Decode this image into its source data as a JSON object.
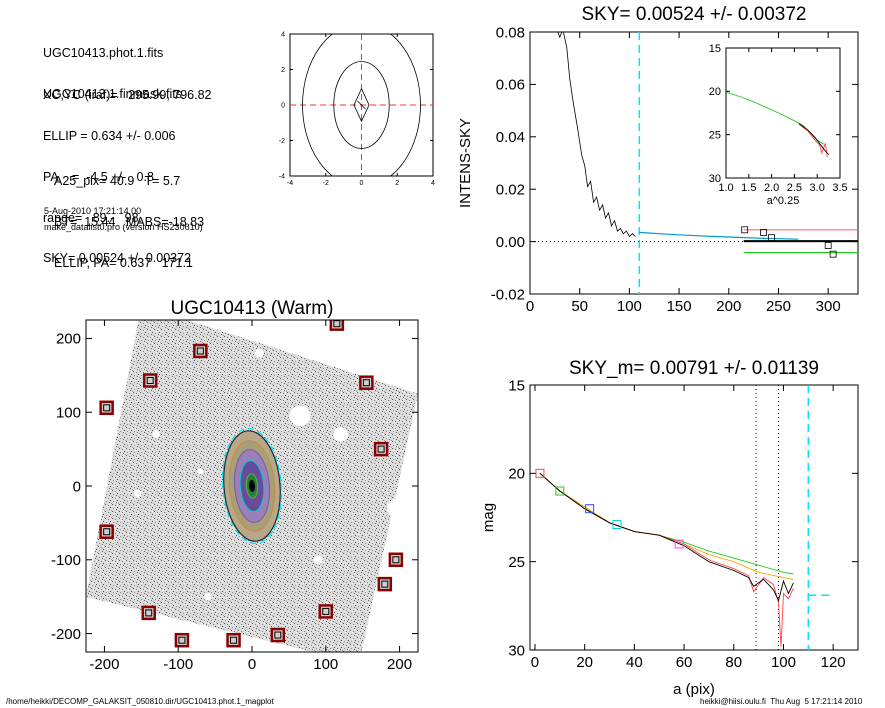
{
  "info": {
    "files": [
      "UGC10413.phot.1.fits",
      "UGC10413.1.finmask.fits"
    ],
    "params": [
      "XC,YC (iraf)=   295.99, 796.82",
      "ELLIP = 0.634 +/- 0.006",
      "PA    =  -4.5 +/-   0.8",
      "range=   89.-   98.",
      "SKY= 0.00524 +/- 0.00372"
    ],
    "derived": [
      "A25_pix= 40.9   T= 5.7",
      "BT=  15.44   MABS=-18.83",
      "ELLIP, PA= 0.637   171.1"
    ],
    "date": "5-Aug-2010 17:21:14.00",
    "program": "make_datalist0.pro (version HS230610)"
  },
  "footer": {
    "path": "/home/heikki/DECOMP_GALAKSIT_050810.dir/UGC10413.phot.1_magplot",
    "user": "heikki@hiisi.oulu.fi  Thu Aug  5 17:21:14 2010"
  },
  "colors": {
    "sky_line": "#00e5ff",
    "markers": "#8b0000",
    "ref_cross": "#ff3030"
  },
  "chart_data": [
    {
      "id": "contour",
      "type": "contour",
      "xlim": [
        -4,
        4
      ],
      "ylim": [
        -4,
        4
      ],
      "xticks": [
        "-4",
        "-2",
        "0",
        "2",
        "4"
      ],
      "yticks": [
        "-4",
        "-2",
        "0",
        "2",
        "4"
      ],
      "contours": [
        {
          "a": 0.42,
          "b": 0.92
        },
        {
          "a": 1.55,
          "b": 2.45
        },
        {
          "a": 3.3,
          "b": 4.6
        }
      ]
    },
    {
      "id": "sky",
      "type": "line",
      "title": "SKY= 0.00524 +/- 0.00372",
      "ylabel": "INTENS-SKY",
      "xlim": [
        0,
        330
      ],
      "ylim": [
        -0.02,
        0.08
      ],
      "xticks": [
        "0",
        "50",
        "100",
        "150",
        "200",
        "250",
        "300"
      ],
      "yticks": [
        "-0.02",
        "0.00",
        "0.02",
        "0.04",
        "0.06",
        "0.08"
      ],
      "sky_marker_x": 110,
      "profile": [
        [
          26,
          0.082
        ],
        [
          30,
          0.078
        ],
        [
          33,
          0.081
        ],
        [
          37,
          0.074
        ],
        [
          40,
          0.062
        ],
        [
          44,
          0.052
        ],
        [
          48,
          0.043
        ],
        [
          52,
          0.033
        ],
        [
          55,
          0.029
        ],
        [
          58,
          0.021
        ],
        [
          61,
          0.023
        ],
        [
          64,
          0.015
        ],
        [
          67,
          0.017
        ],
        [
          70,
          0.012
        ],
        [
          73,
          0.014
        ],
        [
          76,
          0.009
        ],
        [
          79,
          0.011
        ],
        [
          82,
          0.006
        ],
        [
          85,
          0.008
        ],
        [
          88,
          0.004
        ],
        [
          91,
          0.005
        ],
        [
          94,
          0.003
        ],
        [
          97,
          0.004
        ],
        [
          100,
          0.002
        ],
        [
          103,
          0.003
        ],
        [
          106,
          0.002
        ]
      ],
      "fit_profile": [
        [
          110,
          0.0035
        ],
        [
          130,
          0.003
        ],
        [
          150,
          0.0026
        ],
        [
          170,
          0.0022
        ],
        [
          190,
          0.0019
        ],
        [
          210,
          0.0016
        ],
        [
          230,
          0.0013
        ],
        [
          250,
          0.0011
        ],
        [
          270,
          0.0009
        ]
      ],
      "squares": [
        [
          216,
          0.0045
        ],
        [
          235,
          0.0035
        ],
        [
          243,
          0.0015
        ],
        [
          300,
          -0.0015
        ],
        [
          305,
          -0.0048
        ]
      ],
      "levels": [
        {
          "color": "#ff6a6a",
          "y": 0.0045,
          "x": [
            215,
            330
          ]
        },
        {
          "color": "#000000",
          "y": 0.0002,
          "x": [
            215,
            330
          ]
        },
        {
          "color": "#22cc22",
          "y": -0.0042,
          "x": [
            215,
            330
          ]
        }
      ],
      "zero_line": 0
    },
    {
      "id": "inset",
      "type": "line",
      "xlabel": "a^0.25",
      "xlim": [
        1.0,
        3.5
      ],
      "ylim": [
        30,
        15
      ],
      "xticks": [
        "1.0",
        "1.5",
        "2.0",
        "2.5",
        "3.0",
        "3.5"
      ],
      "yticks": [
        "15",
        "20",
        "25",
        "30"
      ],
      "series": [
        {
          "color": "#22cc22",
          "points": [
            [
              1.0,
              20.1
            ],
            [
              1.3,
              20.6
            ],
            [
              1.6,
              21.2
            ],
            [
              1.9,
              21.9
            ],
            [
              2.2,
              22.6
            ],
            [
              2.5,
              23.4
            ],
            [
              2.7,
              24.0
            ],
            [
              2.85,
              24.8
            ],
            [
              2.95,
              25.4
            ],
            [
              3.05,
              25.8
            ],
            [
              3.15,
              26.1
            ]
          ]
        },
        {
          "color": "#ff4444",
          "points": [
            [
              2.6,
              23.8
            ],
            [
              2.8,
              24.6
            ],
            [
              2.95,
              25.6
            ],
            [
              3.05,
              26.2
            ],
            [
              3.1,
              27.1
            ],
            [
              3.18,
              26.0
            ],
            [
              3.22,
              27.6
            ]
          ]
        },
        {
          "color": "#000000",
          "points": [
            [
              2.6,
              23.7
            ],
            [
              2.8,
              24.5
            ],
            [
              2.95,
              25.3
            ],
            [
              3.05,
              26.0
            ],
            [
              3.12,
              26.5
            ],
            [
              3.2,
              27.0
            ],
            [
              3.25,
              27.3
            ]
          ]
        }
      ]
    },
    {
      "id": "image",
      "type": "image",
      "title": "UGC10413 (Warm)",
      "xlim": [
        -225,
        225
      ],
      "ylim": [
        -225,
        225
      ],
      "xticks": [
        "-200",
        "-100",
        "0",
        "100",
        "200"
      ],
      "yticks": [
        "-200",
        "-100",
        "0",
        "100",
        "200"
      ],
      "frame_corners": [
        [
          -150,
          245
        ],
        [
          225,
          125
        ],
        [
          145,
          -240
        ],
        [
          -225,
          -150
        ]
      ],
      "galaxy": {
        "rx": 38,
        "ry": 75,
        "rot": -4.5
      },
      "mask_boxes": [
        [
          -70,
          183
        ],
        [
          -138,
          143
        ],
        [
          -197,
          106
        ],
        [
          155,
          140
        ],
        [
          175,
          50
        ],
        [
          -197,
          -62
        ],
        [
          195,
          -100
        ],
        [
          180,
          -133
        ],
        [
          100,
          -170
        ],
        [
          -140,
          -172
        ],
        [
          -95,
          -209
        ],
        [
          -25,
          -209
        ],
        [
          35,
          -202
        ],
        [
          115,
          220
        ]
      ],
      "holes": [
        [
          65,
          95,
          14
        ],
        [
          120,
          70,
          10
        ],
        [
          195,
          -30,
          12
        ],
        [
          -130,
          70,
          5
        ],
        [
          -155,
          -10,
          5
        ],
        [
          -70,
          20,
          4
        ],
        [
          90,
          -100,
          6
        ],
        [
          -60,
          -150,
          5
        ],
        [
          10,
          180,
          6
        ]
      ]
    },
    {
      "id": "mag",
      "type": "line",
      "title": "SKY_m=  0.00791 +/- 0.01139",
      "xlabel": "a (pix)",
      "ylabel": "mag",
      "xlim": [
        -2,
        130
      ],
      "ylim": [
        30,
        15
      ],
      "xticks": [
        "0",
        "20",
        "40",
        "60",
        "80",
        "100",
        "120"
      ],
      "yticks": [
        "15",
        "20",
        "25",
        "30"
      ],
      "vlines_dotted": [
        89,
        98
      ],
      "sky_marker_x": 110,
      "sky_level_y": 26.9,
      "series": [
        {
          "color": "#22cc22",
          "points": [
            [
              2,
              20.0
            ],
            [
              10,
              21.0
            ],
            [
              20,
              21.9
            ],
            [
              30,
              22.8
            ],
            [
              40,
              23.3
            ],
            [
              50,
              23.5
            ],
            [
              60,
              23.9
            ],
            [
              70,
              24.4
            ],
            [
              80,
              24.8
            ],
            [
              90,
              25.2
            ],
            [
              100,
              25.6
            ],
            [
              104,
              25.7
            ]
          ]
        },
        {
          "color": "#ffa500",
          "points": [
            [
              2,
              20.0
            ],
            [
              10,
              21.0
            ],
            [
              20,
              21.9
            ],
            [
              30,
              22.8
            ],
            [
              40,
              23.3
            ],
            [
              50,
              23.5
            ],
            [
              60,
              24.0
            ],
            [
              70,
              24.6
            ],
            [
              80,
              25.0
            ],
            [
              90,
              25.6
            ],
            [
              100,
              25.9
            ],
            [
              104,
              26.0
            ]
          ]
        },
        {
          "color": "#ff4444",
          "points": [
            [
              2,
              20.0
            ],
            [
              10,
              21.0
            ],
            [
              20,
              22.0
            ],
            [
              30,
              22.8
            ],
            [
              40,
              23.3
            ],
            [
              50,
              23.5
            ],
            [
              60,
              24.0
            ],
            [
              70,
              24.9
            ],
            [
              80,
              25.4
            ],
            [
              86,
              25.8
            ],
            [
              88,
              26.7
            ],
            [
              92,
              25.9
            ],
            [
              96,
              26.3
            ],
            [
              98,
              27.3
            ],
            [
              99,
              29.8
            ],
            [
              100,
              26.8
            ],
            [
              102,
              27.1
            ],
            [
              104,
              26.5
            ]
          ]
        },
        {
          "color": "#000000",
          "points": [
            [
              2,
              20.0
            ],
            [
              10,
              21.0
            ],
            [
              20,
              22.0
            ],
            [
              30,
              22.8
            ],
            [
              40,
              23.3
            ],
            [
              50,
              23.5
            ],
            [
              60,
              24.1
            ],
            [
              70,
              25.0
            ],
            [
              80,
              25.5
            ],
            [
              86,
              25.9
            ],
            [
              88,
              26.4
            ],
            [
              92,
              26.0
            ],
            [
              96,
              26.6
            ],
            [
              98,
              27.2
            ],
            [
              100,
              26.1
            ],
            [
              102,
              26.8
            ],
            [
              104,
              26.2
            ]
          ]
        }
      ],
      "squares": [
        {
          "x": 2,
          "y": 20.0,
          "color": "#ff4444"
        },
        {
          "x": 10,
          "y": 21.0,
          "color": "#22cc22"
        },
        {
          "x": 22,
          "y": 22.0,
          "color": "#3050ff"
        },
        {
          "x": 33,
          "y": 22.9,
          "color": "#00cccc"
        },
        {
          "x": 58,
          "y": 24.0,
          "color": "#ff44ff"
        }
      ]
    }
  ]
}
